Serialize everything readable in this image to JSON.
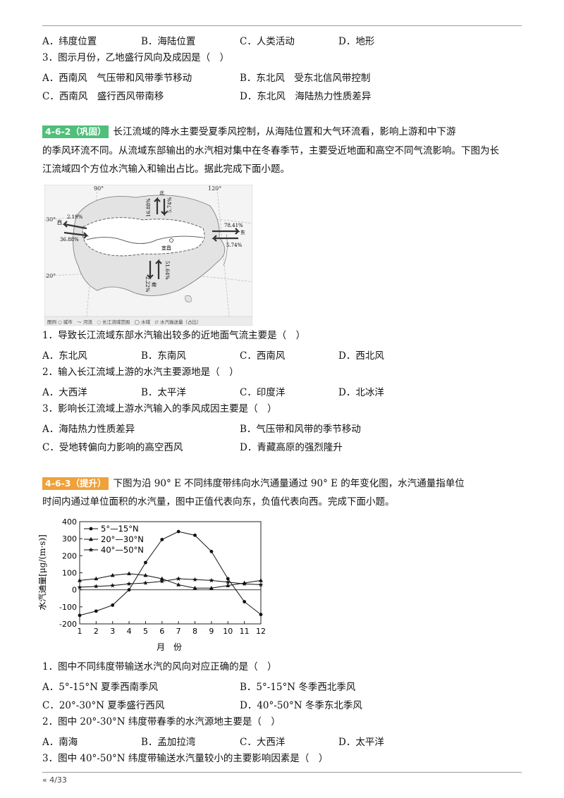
{
  "top_block": {
    "q0_options": [
      "A．纬度位置",
      "B．海陆位置",
      "C．人类活动",
      "D．地形"
    ],
    "q3_text": "3．图示月份，乙地盛行风向及成因是（　）",
    "q3_opts": [
      "A．西南风　气压带和风带季节移动",
      "B．东北风　受东北信风带控制",
      "C．西南风　盛行西风带南移",
      "D．东北风　海陆热力性质差异"
    ]
  },
  "sec2": {
    "tag": "4-6-2（巩固）",
    "intro_1": "长江流域的降水主要受夏季风控制，从海陆位置和大气环流看，影响上游和中下游",
    "intro_2": "的季风环流不同。从流域东部输出的水汽相对集中在冬春季节，主要受近地面和高空不同气流影响。下图为长",
    "intro_3": "江流域四个方位水汽输入和输出占比。据此完成下面小题。",
    "map": {
      "lon_90": "90°",
      "lon_120": "120°",
      "lat_30": "30°",
      "lat_20": "20°",
      "north": "北",
      "south": "南",
      "west": "西",
      "east": "东",
      "n_in": "16.88%",
      "n_out": "5.74%",
      "w_out": "2.19%",
      "w_in": "36.88%",
      "e_out": "78.41%",
      "e_in": "5.74%",
      "s_out": "2.22%",
      "s_in": "51.64%",
      "city": "宜昌",
      "legend": "图例 ○ 城市　～ 河流　◌ 长江流域范围　◯ 水域　⇄ 水汽输送量（占比）"
    },
    "q1": "1．导致长江流域东部水汽输出较多的近地面气流主要是（　）",
    "q1_opts": [
      "A．东北风",
      "B．东南风",
      "C．西南风",
      "D．西北风"
    ],
    "q2": "2．输入长江流域上游的水汽主要源地是（　）",
    "q2_opts": [
      "A．大西洋",
      "B．太平洋",
      "C．印度洋",
      "D．北冰洋"
    ],
    "q3": "3．影响长江流域上游水汽输入的季风成因主要是（　）",
    "q3_opts": [
      "A．海陆热力性质差异",
      "B．气压带和风带的季节移动",
      "C．受地转偏向力影响的高空西风",
      "D．青藏高原的强烈隆升"
    ]
  },
  "sec3": {
    "tag": "4-6-3（提升）",
    "intro_1": "下图为沿 90° E 不同纬度带纬向水汽通量通过 90° E 的年变化图，水汽通量指单位",
    "intro_2": "时间内通过单位面积的水汽量，图中正值代表向东，负值代表向西。完成下面小题。",
    "q1": "1．图中不同纬度带输送水汽的风向对应正确的是（　）",
    "q1_opts": [
      "A．5°-15°N 夏季西南季风",
      "B．5°-15°N 冬季西北季风",
      "C．20°-30°N 夏季盛行西风",
      "D．40°-50°N 冬季东北季风"
    ],
    "q2": "2．图中 20°-30°N 纬度带春季的水汽源地主要是（　）",
    "q2_opts": [
      "A．南海",
      "B．孟加拉湾",
      "C．大西洋",
      "D．太平洋"
    ],
    "q3": "3．图中 40°-50°N 纬度带输送水汽量较小的主要影响因素是（　）"
  },
  "chart_data": {
    "type": "line",
    "ylabel": "水汽通量[μg/(m·s)]",
    "xlabel": "月　份",
    "x": [
      1,
      2,
      3,
      4,
      5,
      6,
      7,
      8,
      9,
      10,
      11,
      12
    ],
    "ylim": [
      -200,
      400
    ],
    "yticks": [
      -200,
      -100,
      0,
      100,
      200,
      300,
      400
    ],
    "series": [
      {
        "name": "5°—15°N",
        "marker": "circle",
        "values": [
          -150,
          -125,
          -90,
          0,
          160,
          295,
          342,
          320,
          225,
          65,
          -70,
          -145
        ]
      },
      {
        "name": "20°—30°N",
        "marker": "triangle",
        "values": [
          55,
          65,
          85,
          95,
          85,
          65,
          30,
          10,
          10,
          25,
          40,
          55
        ]
      },
      {
        "name": "40°—50°N",
        "marker": "star",
        "values": [
          15,
          20,
          25,
          35,
          40,
          50,
          65,
          60,
          55,
          45,
          35,
          30
        ]
      }
    ]
  },
  "footer": {
    "page": "« 4/33"
  }
}
